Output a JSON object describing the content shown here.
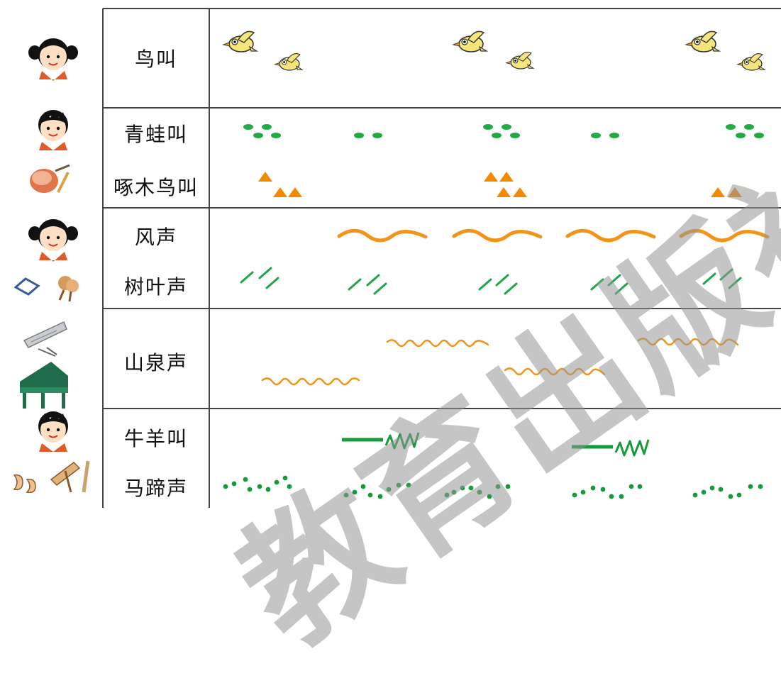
{
  "rows": [
    {
      "label": "鸟叫"
    },
    {
      "label": "青蛙叫"
    },
    {
      "label": "啄木鸟叫"
    },
    {
      "label": "风声"
    },
    {
      "label": "树叶声"
    },
    {
      "label": "山泉声"
    },
    {
      "label": "牛羊叫"
    },
    {
      "label": "马蹄声"
    }
  ],
  "watermark": "教育出版社",
  "colors": {
    "frog": "#22aa44",
    "woodpecker": "#f08a00",
    "wind": "#f0941a",
    "leaves": "#1fa64a",
    "spring": "#f0941a",
    "cattle": "#159a3c",
    "hooves": "#159a3c",
    "grid": "#555555"
  },
  "icons": [
    "girl-icon",
    "boy-icon",
    "drum-icon",
    "girl-icon",
    "tambourine-maracas-icon",
    "xylophone-icon",
    "piano-icon",
    "boy-icon",
    "castanets-wood-blocks-icon"
  ]
}
